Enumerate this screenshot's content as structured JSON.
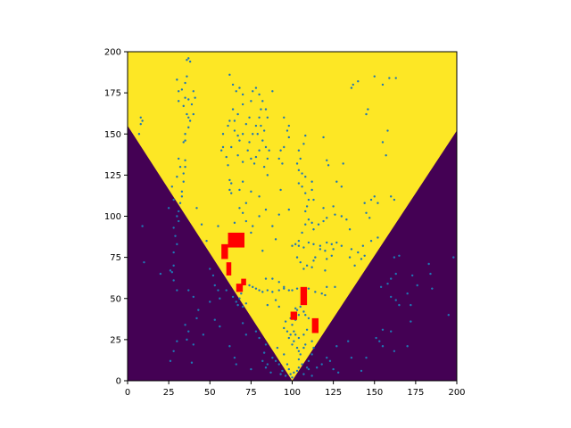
{
  "chart_data": {
    "type": "heatmap",
    "title": "",
    "xlabel": "",
    "ylabel": "",
    "xlim": [
      0,
      200
    ],
    "ylim": [
      0,
      200
    ],
    "x_ticks": [
      "0",
      "25",
      "50",
      "75",
      "100",
      "125",
      "150",
      "175",
      "200"
    ],
    "y_ticks": [
      "0",
      "25",
      "50",
      "75",
      "100",
      "125",
      "150",
      "175",
      "200"
    ],
    "grid": false,
    "colors": {
      "inside_region": "#fde725",
      "outside_region": "#440154",
      "points": "#1f77b4",
      "markers": "#ff0000"
    },
    "region": {
      "description_polygon": [
        [
          0,
          155
        ],
        [
          100,
          0
        ],
        [
          200,
          152
        ],
        [
          200,
          200
        ],
        [
          0,
          200
        ]
      ]
    },
    "red_markers": [
      {
        "x": [
          57,
          61
        ],
        "y": [
          74,
          83
        ]
      },
      {
        "x": [
          61,
          71
        ],
        "y": [
          81,
          90
        ]
      },
      {
        "x": [
          60,
          63
        ],
        "y": [
          64,
          72
        ]
      },
      {
        "x": [
          66,
          70
        ],
        "y": [
          54,
          59
        ]
      },
      {
        "x": [
          69,
          72
        ],
        "y": [
          58,
          62
        ]
      },
      {
        "x": [
          105,
          109
        ],
        "y": [
          46,
          57
        ]
      },
      {
        "x": [
          99,
          103
        ],
        "y": [
          37,
          42
        ]
      },
      {
        "x": [
          112,
          116
        ],
        "y": [
          29,
          38
        ]
      }
    ],
    "points": [
      [
        37,
        196
      ],
      [
        38,
        194
      ],
      [
        36,
        195
      ],
      [
        36,
        185
      ],
      [
        35,
        181
      ],
      [
        33,
        177
      ],
      [
        34,
        167
      ],
      [
        36,
        162
      ],
      [
        35,
        150
      ],
      [
        34,
        145
      ],
      [
        37,
        160
      ],
      [
        35,
        172
      ],
      [
        31,
        176
      ],
      [
        31,
        170
      ],
      [
        8,
        160
      ],
      [
        9,
        158
      ],
      [
        8,
        156
      ],
      [
        7,
        150
      ],
      [
        25,
        105
      ],
      [
        33,
        115
      ],
      [
        34,
        121
      ],
      [
        34,
        126
      ],
      [
        35,
        130
      ],
      [
        35,
        134
      ],
      [
        33,
        112
      ],
      [
        32,
        108
      ],
      [
        31,
        103
      ],
      [
        30,
        100
      ],
      [
        31,
        97
      ],
      [
        28,
        93
      ],
      [
        29,
        88
      ],
      [
        30,
        83
      ],
      [
        28,
        78
      ],
      [
        28,
        70
      ],
      [
        27,
        66
      ],
      [
        28,
        61
      ],
      [
        30,
        55
      ],
      [
        9,
        94
      ],
      [
        10,
        72
      ],
      [
        20,
        65
      ],
      [
        26,
        67
      ],
      [
        50,
        68
      ],
      [
        52,
        64
      ],
      [
        53,
        58
      ],
      [
        55,
        55
      ],
      [
        50,
        48
      ],
      [
        56,
        50
      ],
      [
        60,
        55
      ],
      [
        64,
        51
      ],
      [
        66,
        48
      ],
      [
        67,
        46
      ],
      [
        68,
        50
      ],
      [
        70,
        45
      ],
      [
        72,
        47
      ],
      [
        69,
        53
      ],
      [
        74,
        58
      ],
      [
        76,
        57
      ],
      [
        78,
        56
      ],
      [
        80,
        55
      ],
      [
        82,
        54
      ],
      [
        85,
        55
      ],
      [
        88,
        54
      ],
      [
        92,
        55
      ],
      [
        95,
        56
      ],
      [
        98,
        55
      ],
      [
        100,
        55
      ],
      [
        103,
        56
      ],
      [
        106,
        55
      ],
      [
        110,
        56
      ],
      [
        114,
        54
      ],
      [
        118,
        53
      ],
      [
        120,
        52
      ],
      [
        84,
        62
      ],
      [
        88,
        62
      ],
      [
        92,
        60
      ],
      [
        95,
        57
      ],
      [
        120,
        67
      ],
      [
        126,
        57
      ],
      [
        121,
        57
      ],
      [
        105,
        45
      ],
      [
        103,
        43
      ],
      [
        107,
        42
      ],
      [
        108,
        40
      ],
      [
        110,
        38
      ],
      [
        104,
        40
      ],
      [
        102,
        37
      ],
      [
        100,
        34
      ],
      [
        101,
        30
      ],
      [
        99,
        28
      ],
      [
        98,
        26
      ],
      [
        102,
        28
      ],
      [
        104,
        26
      ],
      [
        101,
        24
      ],
      [
        100,
        22
      ],
      [
        103,
        20
      ],
      [
        104,
        18
      ],
      [
        105,
        16
      ],
      [
        104,
        13
      ],
      [
        106,
        10
      ],
      [
        104,
        8
      ],
      [
        103,
        6
      ],
      [
        101,
        5
      ],
      [
        99,
        4
      ],
      [
        98,
        7
      ],
      [
        97,
        10
      ],
      [
        96,
        3
      ],
      [
        94,
        6
      ],
      [
        92,
        10
      ],
      [
        90,
        12
      ],
      [
        88,
        14
      ],
      [
        85,
        10
      ],
      [
        84,
        8
      ],
      [
        87,
        5
      ],
      [
        93,
        4
      ],
      [
        100,
        2
      ],
      [
        107,
        4
      ],
      [
        109,
        8
      ],
      [
        110,
        12
      ],
      [
        112,
        16
      ],
      [
        113,
        20
      ],
      [
        112,
        24
      ],
      [
        108,
        22
      ],
      [
        107,
        20
      ],
      [
        107,
        28
      ],
      [
        109,
        31
      ],
      [
        97,
        30
      ],
      [
        95,
        32
      ],
      [
        96,
        36
      ],
      [
        99,
        38
      ],
      [
        102,
        44
      ],
      [
        110,
        7
      ],
      [
        112,
        3
      ],
      [
        115,
        8
      ],
      [
        118,
        10
      ],
      [
        121,
        14
      ],
      [
        123,
        12
      ],
      [
        125,
        7
      ],
      [
        128,
        5
      ],
      [
        95,
        16
      ],
      [
        91,
        20
      ],
      [
        92,
        45
      ],
      [
        90,
        49
      ],
      [
        85,
        46
      ],
      [
        62,
        186
      ],
      [
        64,
        180
      ],
      [
        66,
        176
      ],
      [
        68,
        178
      ],
      [
        70,
        174
      ],
      [
        70,
        168
      ],
      [
        67,
        162
      ],
      [
        65,
        158
      ],
      [
        65,
        152
      ],
      [
        67,
        149
      ],
      [
        68,
        146
      ],
      [
        70,
        150
      ],
      [
        72,
        156
      ],
      [
        74,
        160
      ],
      [
        75,
        170
      ],
      [
        76,
        176
      ],
      [
        78,
        178
      ],
      [
        80,
        174
      ],
      [
        82,
        170
      ],
      [
        81,
        165
      ],
      [
        80,
        160
      ],
      [
        78,
        155
      ],
      [
        76,
        150
      ],
      [
        74,
        145
      ],
      [
        73,
        140
      ],
      [
        75,
        135
      ],
      [
        77,
        132
      ],
      [
        79,
        150
      ],
      [
        81,
        155
      ],
      [
        83,
        152
      ],
      [
        82,
        146
      ],
      [
        80,
        140
      ],
      [
        78,
        136
      ],
      [
        84,
        142
      ],
      [
        86,
        140
      ],
      [
        85,
        135
      ],
      [
        83,
        130
      ],
      [
        85,
        160
      ],
      [
        84,
        165
      ],
      [
        88,
        176
      ],
      [
        64,
        165
      ],
      [
        62,
        158
      ],
      [
        61,
        155
      ],
      [
        63,
        142
      ],
      [
        67,
        137
      ],
      [
        70,
        133
      ],
      [
        62,
        122
      ],
      [
        63,
        120
      ],
      [
        62,
        116
      ],
      [
        63,
        114
      ],
      [
        68,
        116
      ],
      [
        70,
        121
      ],
      [
        75,
        115
      ],
      [
        80,
        112
      ],
      [
        85,
        125
      ],
      [
        93,
        116
      ],
      [
        95,
        160
      ],
      [
        98,
        155
      ],
      [
        93,
        140
      ],
      [
        92,
        135
      ],
      [
        95,
        142
      ],
      [
        98,
        148
      ],
      [
        97,
        152
      ],
      [
        94,
        132
      ],
      [
        58,
        150
      ],
      [
        58,
        142
      ],
      [
        57,
        140
      ],
      [
        60,
        136
      ],
      [
        61,
        131
      ],
      [
        104,
        120
      ],
      [
        106,
        118
      ],
      [
        108,
        114
      ],
      [
        110,
        110
      ],
      [
        109,
        106
      ],
      [
        108,
        103
      ],
      [
        110,
        98
      ],
      [
        112,
        96
      ],
      [
        108,
        95
      ],
      [
        106,
        90
      ],
      [
        104,
        85
      ],
      [
        102,
        83
      ],
      [
        100,
        82
      ],
      [
        104,
        82
      ],
      [
        107,
        81
      ],
      [
        110,
        84
      ],
      [
        113,
        83
      ],
      [
        117,
        82
      ],
      [
        121,
        84
      ],
      [
        124,
        83
      ],
      [
        127,
        84
      ],
      [
        130,
        82
      ],
      [
        125,
        80
      ],
      [
        124,
        76
      ],
      [
        121,
        74
      ],
      [
        120,
        79
      ],
      [
        117,
        80
      ],
      [
        114,
        75
      ],
      [
        113,
        73
      ],
      [
        112,
        69
      ],
      [
        107,
        68
      ],
      [
        105,
        72
      ],
      [
        103,
        75
      ],
      [
        109,
        70
      ],
      [
        113,
        92
      ],
      [
        116,
        95
      ],
      [
        119,
        97
      ],
      [
        121,
        99
      ],
      [
        126,
        101
      ],
      [
        125,
        106
      ],
      [
        119,
        105
      ],
      [
        113,
        110
      ],
      [
        112,
        116
      ],
      [
        112,
        121
      ],
      [
        108,
        124
      ],
      [
        106,
        126
      ],
      [
        104,
        128
      ],
      [
        103,
        132
      ],
      [
        105,
        135
      ],
      [
        104,
        140
      ],
      [
        107,
        144
      ],
      [
        108,
        149
      ],
      [
        119,
        148
      ],
      [
        121,
        134
      ],
      [
        122,
        131
      ],
      [
        131,
        132
      ],
      [
        130,
        118
      ],
      [
        127,
        121
      ],
      [
        130,
        100
      ],
      [
        133,
        98
      ],
      [
        135,
        92
      ],
      [
        136,
        80
      ],
      [
        135,
        75
      ],
      [
        140,
        78
      ],
      [
        143,
        82
      ],
      [
        148,
        85
      ],
      [
        144,
        76
      ],
      [
        142,
        74
      ],
      [
        138,
        70
      ],
      [
        152,
        87
      ],
      [
        147,
        99
      ],
      [
        145,
        102
      ],
      [
        152,
        108
      ],
      [
        160,
        112
      ],
      [
        162,
        110
      ],
      [
        157,
        137
      ],
      [
        155,
        180
      ],
      [
        159,
        184
      ],
      [
        163,
        184
      ],
      [
        150,
        185
      ],
      [
        140,
        182
      ],
      [
        137,
        180
      ],
      [
        136,
        178
      ],
      [
        146,
        165
      ],
      [
        145,
        162
      ],
      [
        158,
        152
      ],
      [
        155,
        145
      ],
      [
        150,
        112
      ],
      [
        148,
        110
      ],
      [
        144,
        108
      ],
      [
        162,
        75
      ],
      [
        163,
        65
      ],
      [
        160,
        62
      ],
      [
        158,
        59
      ],
      [
        154,
        57
      ],
      [
        160,
        51
      ],
      [
        163,
        49
      ],
      [
        165,
        46
      ],
      [
        170,
        53
      ],
      [
        172,
        46
      ],
      [
        176,
        58
      ],
      [
        183,
        71
      ],
      [
        184,
        65
      ],
      [
        185,
        56
      ],
      [
        195,
        40
      ],
      [
        198,
        75
      ],
      [
        173,
        64
      ],
      [
        165,
        76
      ],
      [
        160,
        30
      ],
      [
        172,
        36
      ],
      [
        170,
        21
      ],
      [
        162,
        18
      ],
      [
        155,
        21
      ],
      [
        153,
        24
      ],
      [
        151,
        26
      ],
      [
        155,
        31
      ],
      [
        145,
        14
      ],
      [
        134,
        24
      ],
      [
        136,
        14
      ],
      [
        127,
        21
      ],
      [
        142,
        6
      ],
      [
        37,
        55
      ],
      [
        40,
        51
      ],
      [
        43,
        43
      ],
      [
        42,
        38
      ],
      [
        35,
        34
      ],
      [
        37,
        30
      ],
      [
        36,
        25
      ],
      [
        30,
        24
      ],
      [
        28,
        18
      ],
      [
        26,
        12
      ],
      [
        39,
        11
      ],
      [
        40,
        22
      ],
      [
        46,
        28
      ],
      [
        53,
        37
      ],
      [
        56,
        33
      ],
      [
        62,
        21
      ],
      [
        65,
        14
      ],
      [
        70,
        35
      ],
      [
        72,
        28
      ],
      [
        78,
        30
      ],
      [
        80,
        26
      ],
      [
        84,
        22
      ],
      [
        83,
        17
      ],
      [
        82,
        12
      ],
      [
        75,
        7
      ],
      [
        66,
        10
      ],
      [
        48,
        85
      ],
      [
        55,
        94
      ],
      [
        42,
        105
      ],
      [
        45,
        95
      ],
      [
        82,
        79
      ],
      [
        90,
        86
      ],
      [
        88,
        94
      ],
      [
        92,
        101
      ],
      [
        98,
        104
      ],
      [
        84,
        104
      ],
      [
        80,
        100
      ],
      [
        76,
        94
      ],
      [
        75,
        90
      ],
      [
        72,
        97
      ],
      [
        70,
        102
      ],
      [
        65,
        96
      ],
      [
        68,
        105
      ],
      [
        72,
        108
      ],
      [
        28,
        110
      ],
      [
        27,
        118
      ],
      [
        30,
        124
      ],
      [
        32,
        130
      ],
      [
        31,
        135
      ],
      [
        35,
        146
      ],
      [
        37,
        154
      ],
      [
        38,
        158
      ],
      [
        40,
        162
      ],
      [
        39,
        168
      ],
      [
        41,
        172
      ],
      [
        40,
        176
      ],
      [
        37,
        171
      ],
      [
        30,
        183
      ]
    ]
  }
}
